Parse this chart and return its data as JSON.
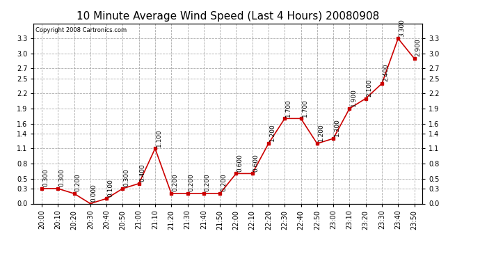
{
  "title": "10 Minute Average Wind Speed (Last 4 Hours) 20080908",
  "copyright": "Copyright 2008 Cartronics.com",
  "x_labels": [
    "20:00",
    "20:10",
    "20:20",
    "20:30",
    "20:40",
    "20:50",
    "21:00",
    "21:10",
    "21:20",
    "21:30",
    "21:40",
    "21:50",
    "22:00",
    "22:10",
    "22:20",
    "22:30",
    "22:40",
    "22:50",
    "23:00",
    "23:10",
    "23:20",
    "23:30",
    "23:40",
    "23:50"
  ],
  "y_values": [
    0.3,
    0.3,
    0.2,
    0.0,
    0.1,
    0.3,
    0.4,
    1.1,
    0.2,
    0.2,
    0.2,
    0.2,
    0.6,
    0.6,
    1.2,
    1.7,
    1.7,
    1.2,
    1.3,
    1.9,
    2.1,
    2.4,
    3.3,
    2.9
  ],
  "point_labels": [
    "0.300",
    "0.300",
    "0.200",
    "0.000",
    "0.100",
    "0.300",
    "0.400",
    "1.100",
    "0.200",
    "0.200",
    "0.200",
    "0.200",
    "0.600",
    "0.600",
    "1.200",
    "1.700",
    "1.700",
    "1.200",
    "1.300",
    "1.900",
    "2.100",
    "2.400",
    "3.300",
    "2.900"
  ],
  "line_color": "#cc0000",
  "marker_color": "#cc0000",
  "background_color": "#ffffff",
  "grid_color": "#aaaaaa",
  "ylim": [
    0.0,
    3.6
  ],
  "yticks": [
    0.0,
    0.3,
    0.5,
    0.8,
    1.1,
    1.4,
    1.6,
    1.9,
    2.2,
    2.5,
    2.7,
    3.0,
    3.3
  ],
  "title_fontsize": 11,
  "label_fontsize": 7,
  "annot_fontsize": 6.5
}
